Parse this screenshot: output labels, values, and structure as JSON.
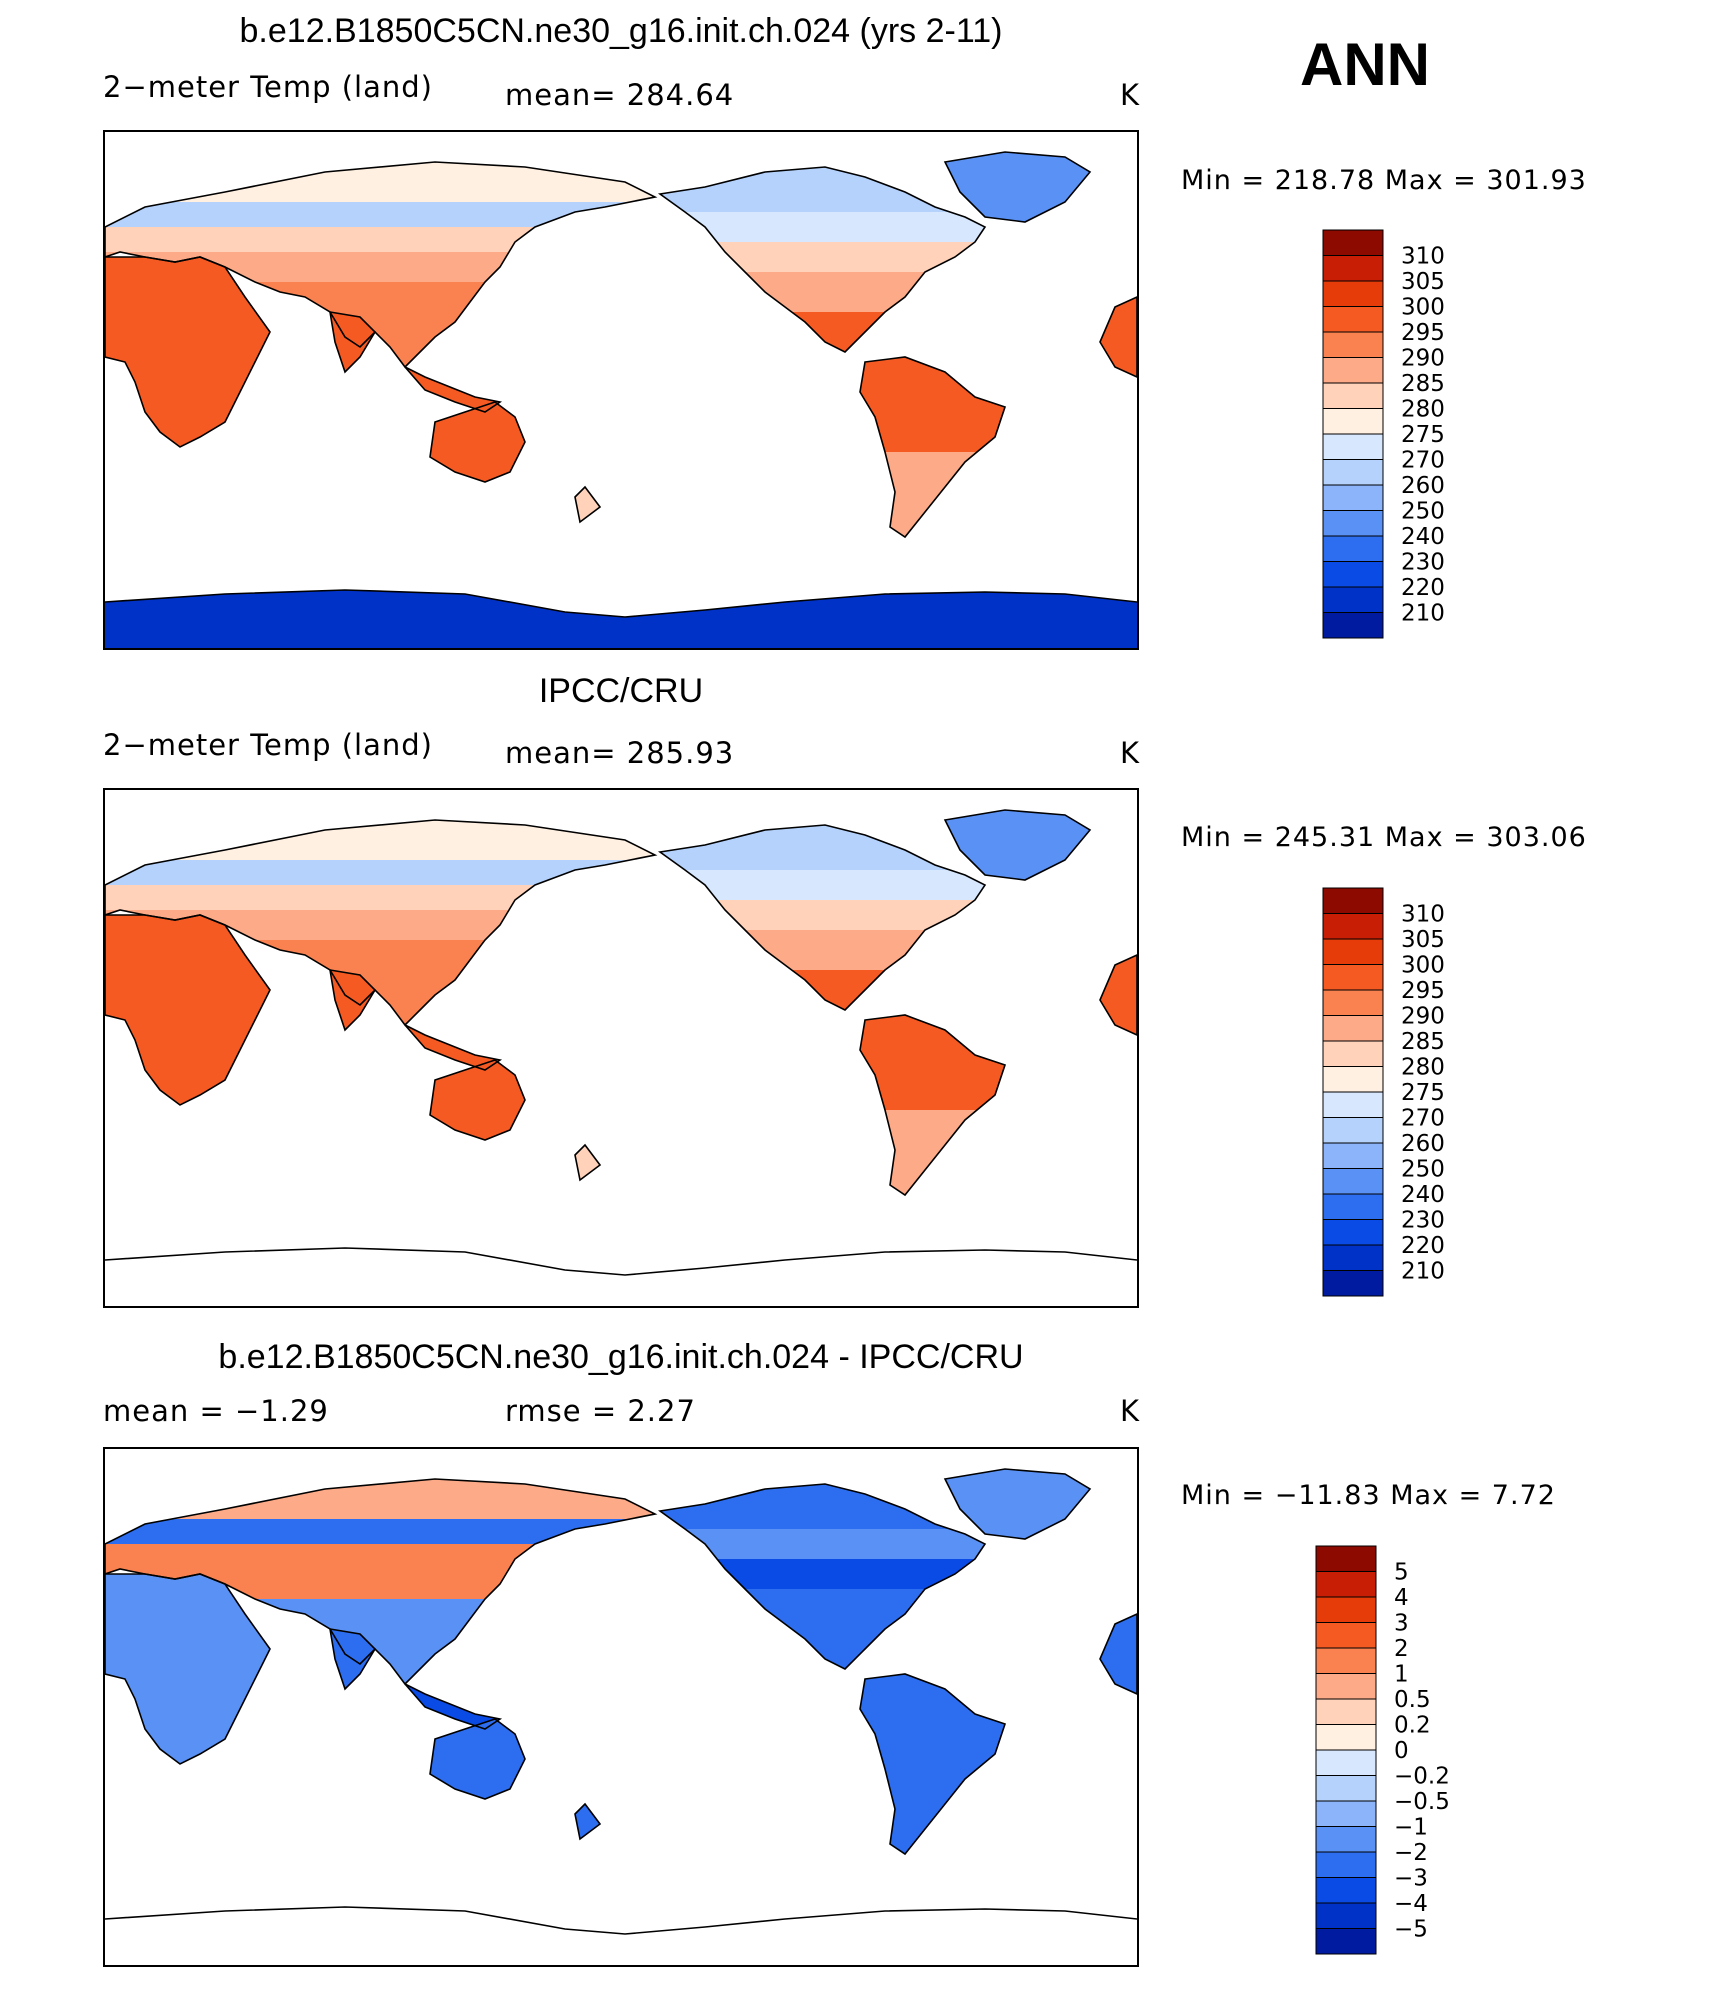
{
  "season": "ANN",
  "colors": {
    "abs_scale": [
      "#000080",
      "#001aa0",
      "#0032c8",
      "#0a4be6",
      "#2d6ef0",
      "#5a91f5",
      "#8cb4fa",
      "#b4d2fc",
      "#d7e8fe",
      "#fff0e1",
      "#ffd2b9",
      "#fcaa87",
      "#fa8250",
      "#f55a23",
      "#e63c0a",
      "#c81e05",
      "#8c0a00"
    ],
    "diff_scale": [
      "#000080",
      "#001aa0",
      "#0032c8",
      "#0a4be6",
      "#2d6ef0",
      "#5a91f5",
      "#8cb4fa",
      "#b4d2fc",
      "#d7e8fe",
      "#fff0e1",
      "#ffd2b9",
      "#fcaa87",
      "#fa8250",
      "#f55a23",
      "#e63c0a",
      "#c81e05",
      "#8c0a00"
    ]
  },
  "chart_data": [
    {
      "type": "heatmap",
      "title": "b.e12.B1850C5CN.ne30_g16.init.ch.024 (yrs 2-11)",
      "left_label": "2−meter Temp  (land)",
      "mid_label": "mean=  284.64",
      "units": "K",
      "minmax": "Min  =  218.78  Max  =  301.93",
      "colorbar_labels": [
        "310",
        "305",
        "300",
        "295",
        "290",
        "285",
        "280",
        "275",
        "270",
        "260",
        "250",
        "240",
        "230",
        "220",
        "210"
      ],
      "antarctica_filled": true
    },
    {
      "type": "heatmap",
      "title": "IPCC/CRU",
      "left_label": "2−meter Temp  (land)",
      "mid_label": "mean=  285.93",
      "units": "K",
      "minmax": "Min  =  245.31  Max  =  303.06",
      "colorbar_labels": [
        "310",
        "305",
        "300",
        "295",
        "290",
        "285",
        "280",
        "275",
        "270",
        "260",
        "250",
        "240",
        "230",
        "220",
        "210"
      ],
      "antarctica_filled": false
    },
    {
      "type": "heatmap",
      "title": "b.e12.B1850C5CN.ne30_g16.init.ch.024 - IPCC/CRU",
      "left_label": "mean  =     −1.29",
      "mid_label": "rmse  =      2.27",
      "units": "K",
      "minmax": "Min  =  −11.83  Max  =      7.72",
      "colorbar_labels": [
        "5",
        "4",
        "3",
        "2",
        "1",
        "0.5",
        "0.2",
        "0",
        "−0.2",
        "−0.5",
        "−1",
        "−2",
        "−3",
        "−4",
        "−5"
      ],
      "antarctica_filled": false
    }
  ]
}
